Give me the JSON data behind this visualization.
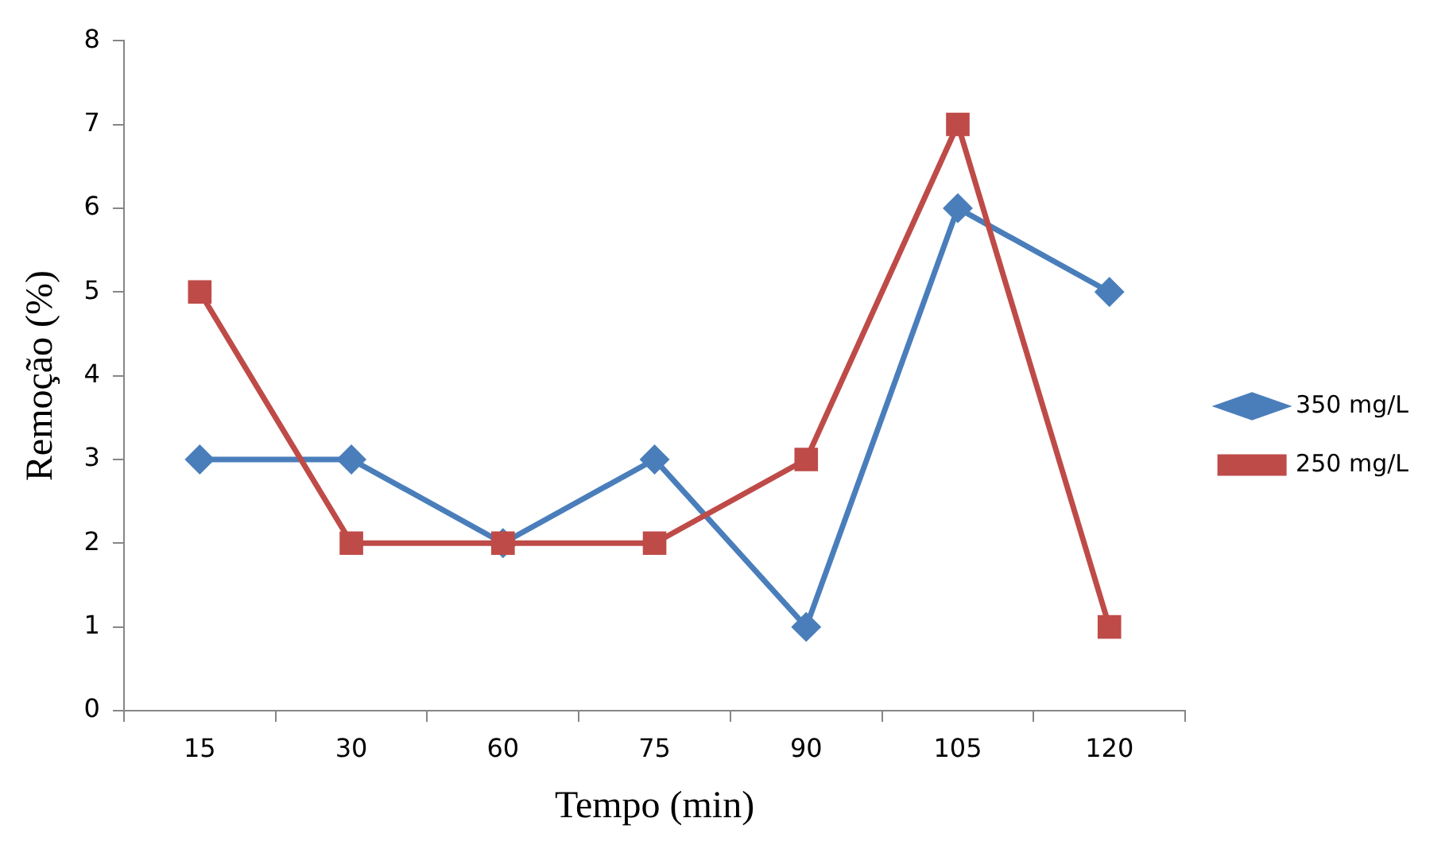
{
  "chart_data": {
    "type": "line",
    "xlabel": "Tempo (min)",
    "ylabel": "Remoção (%)",
    "categories": [
      "15",
      "30",
      "60",
      "75",
      "90",
      "105",
      "120"
    ],
    "series": [
      {
        "name": "350 mg/L",
        "color": "#4a7ebb",
        "marker": "diamond",
        "values": [
          3,
          3,
          2,
          3,
          1,
          6,
          5
        ]
      },
      {
        "name": "250 mg/L",
        "color": "#be4b48",
        "marker": "square",
        "values": [
          5,
          2,
          2,
          2,
          3,
          7,
          1
        ]
      }
    ],
    "ylim": [
      0,
      8
    ],
    "yticks": [
      0,
      1,
      2,
      3,
      4,
      5,
      6,
      7,
      8
    ],
    "grid": false,
    "legend": "right"
  }
}
